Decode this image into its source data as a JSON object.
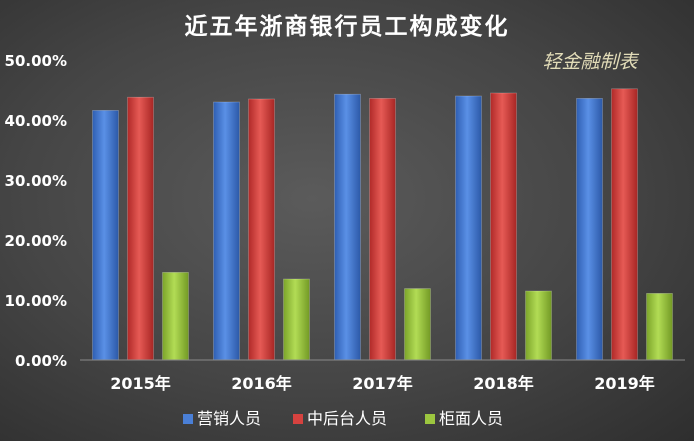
{
  "chart_data": {
    "type": "bar",
    "title": "近五年浙商银行员工构成变化",
    "watermark": "轻金融制表",
    "categories": [
      "2015年",
      "2016年",
      "2017年",
      "2018年",
      "2019年"
    ],
    "series": [
      {
        "name": "营销人员",
        "color": "#4a7fd6",
        "values": [
          41.6,
          43.0,
          44.3,
          44.0,
          43.6
        ]
      },
      {
        "name": "中后台人员",
        "color": "#d6423f",
        "values": [
          43.8,
          43.5,
          43.6,
          44.5,
          45.2
        ]
      },
      {
        "name": "柜面人员",
        "color": "#9cc63f",
        "values": [
          14.6,
          13.5,
          11.9,
          11.5,
          11.1
        ]
      }
    ],
    "ylim": [
      0,
      50
    ],
    "yticks": [
      "0.00%",
      "10.00%",
      "20.00%",
      "30.00%",
      "40.00%",
      "50.00%"
    ],
    "ytick_values": [
      0,
      10,
      20,
      30,
      40,
      50
    ],
    "legend_position": "bottom",
    "grid": false
  }
}
